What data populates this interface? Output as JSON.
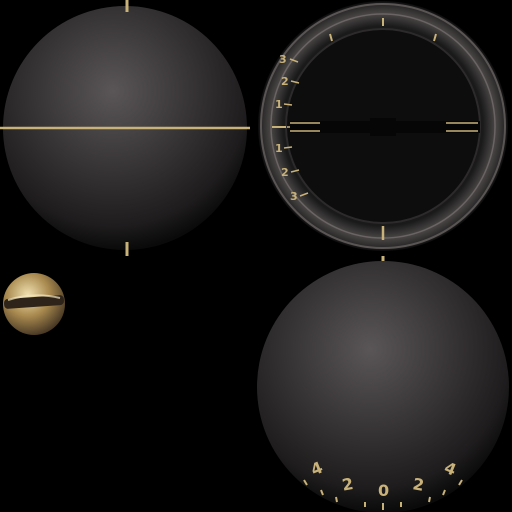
{
  "instrument_texture": {
    "colors": {
      "background": "#000000",
      "brass": "#c8b27a",
      "bezel": "#3a3838",
      "dial_face": "#0d0d0d"
    },
    "bank_scale": {
      "upper_labels": [
        "3",
        "2",
        "1"
      ],
      "lower_labels": [
        "1",
        "2",
        "3"
      ]
    },
    "heading_scale": {
      "labels": [
        "4",
        "2",
        "0",
        "2",
        "4"
      ]
    },
    "icons": [
      "screw-icon",
      "instrument-glass-icon",
      "attitude-bar-icon"
    ]
  }
}
